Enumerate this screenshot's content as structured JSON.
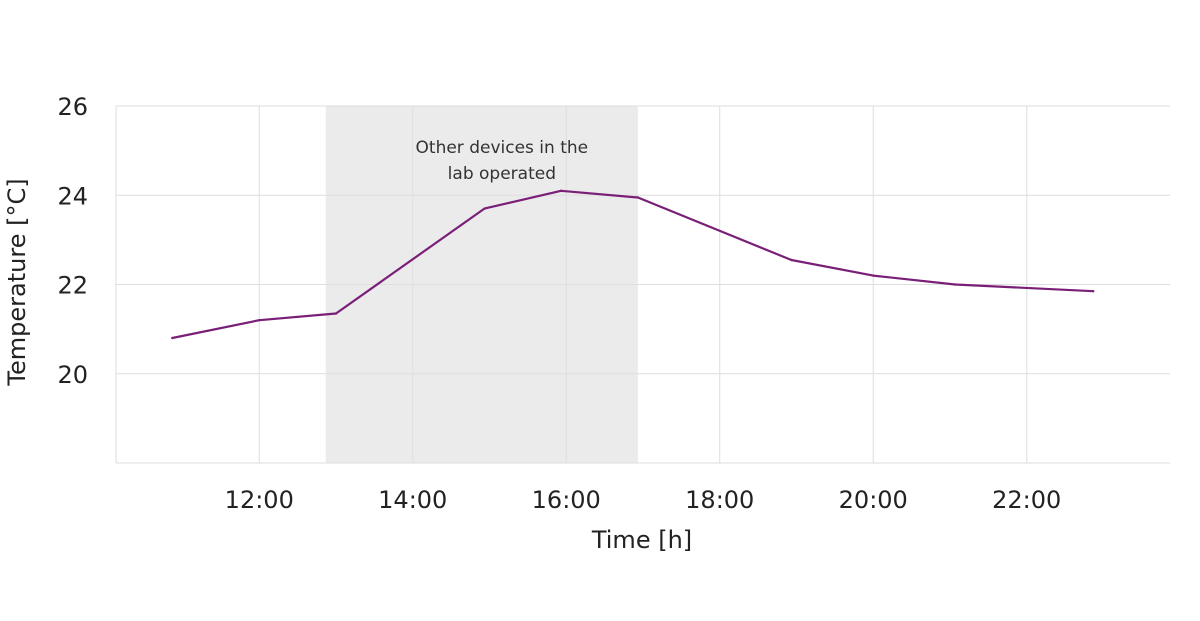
{
  "chart_data": {
    "type": "line",
    "title": "",
    "xlabel": "Time [h]",
    "ylabel": "Temperature [°C]",
    "xlim": [
      "10:08",
      "23:52"
    ],
    "ylim": [
      18,
      26
    ],
    "x_ticks": [
      "12:00",
      "14:00",
      "16:00",
      "18:00",
      "20:00",
      "22:00"
    ],
    "y_ticks": [
      20,
      22,
      24,
      26
    ],
    "grid": true,
    "series": [
      {
        "color": "#7a1f77",
        "points": [
          {
            "x": "10:52",
            "y": 20.8
          },
          {
            "x": "12:00",
            "y": 21.2
          },
          {
            "x": "13:00",
            "y": 21.35
          },
          {
            "x": "14:56",
            "y": 23.7
          },
          {
            "x": "15:56",
            "y": 24.1
          },
          {
            "x": "16:56",
            "y": 23.95
          },
          {
            "x": "18:56",
            "y": 22.55
          },
          {
            "x": "20:00",
            "y": 22.2
          },
          {
            "x": "21:04",
            "y": 22.0
          },
          {
            "x": "22:52",
            "y": 21.85
          }
        ]
      }
    ],
    "shaded_region": {
      "x_start": "12:52",
      "x_end": "16:56",
      "color": "#ebebeb",
      "label_lines": [
        "Other devices in the",
        "lab operated"
      ]
    }
  }
}
